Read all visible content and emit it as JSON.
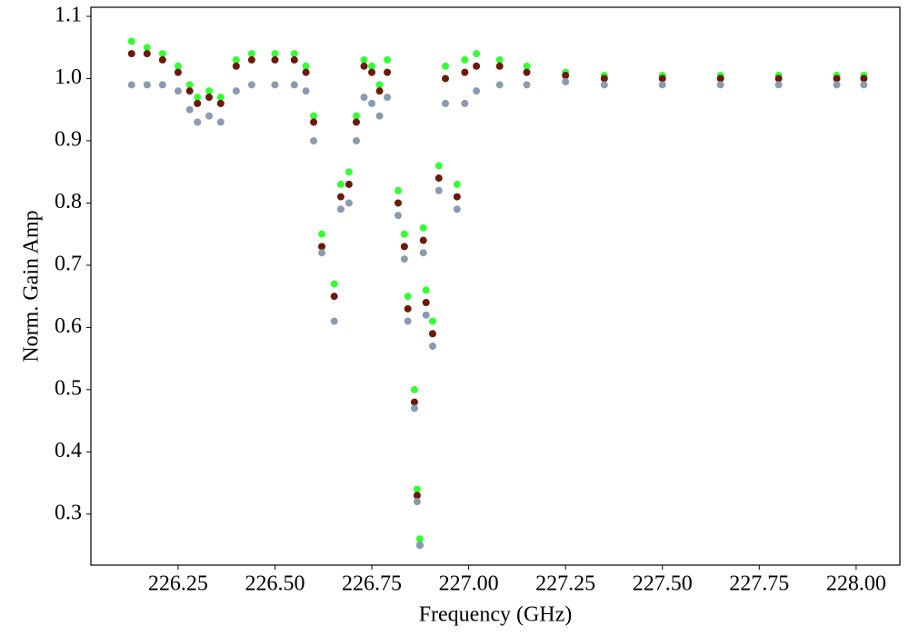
{
  "chart_data": {
    "type": "scatter",
    "x_label": "Frequency (GHz)",
    "y_label": "Norm. Gain Amp",
    "x": [
      226.13,
      226.17,
      226.21,
      226.25,
      226.28,
      226.3,
      226.33,
      226.36,
      226.4,
      226.44,
      226.5,
      226.55,
      226.58,
      226.6,
      226.621,
      226.653,
      226.67,
      226.691,
      226.71,
      226.73,
      226.75,
      226.77,
      226.79,
      226.818,
      226.834,
      226.843,
      226.86,
      226.867,
      226.874,
      226.883,
      226.89,
      226.907,
      226.923,
      226.94,
      226.97,
      226.99,
      227.02,
      227.08,
      227.15,
      227.25,
      227.35,
      227.5,
      227.65,
      227.8,
      227.95,
      228.02
    ],
    "series": [
      {
        "color": "#33ff33",
        "values": [
          1.06,
          1.05,
          1.04,
          1.02,
          0.99,
          0.97,
          0.98,
          0.97,
          1.03,
          1.04,
          1.04,
          1.04,
          1.02,
          0.94,
          0.75,
          0.67,
          0.83,
          0.85,
          0.94,
          1.03,
          1.02,
          0.99,
          1.03,
          0.82,
          0.75,
          0.65,
          0.5,
          0.34,
          0.26,
          0.76,
          0.66,
          0.61,
          0.86,
          1.02,
          0.83,
          1.03,
          1.04,
          1.03,
          1.02,
          1.01,
          1.005,
          1.005,
          1.005,
          1.005,
          1.005,
          1.005
        ]
      },
      {
        "color": "#6b1a0a",
        "values": [
          1.04,
          1.04,
          1.03,
          1.01,
          0.98,
          0.96,
          0.97,
          0.96,
          1.02,
          1.03,
          1.03,
          1.03,
          1.01,
          0.93,
          0.73,
          0.65,
          0.81,
          0.83,
          0.93,
          1.02,
          1.01,
          0.98,
          1.01,
          0.8,
          0.73,
          0.63,
          0.48,
          0.33,
          0.25,
          0.74,
          0.64,
          0.59,
          0.84,
          1.0,
          0.81,
          1.01,
          1.02,
          1.02,
          1.01,
          1.005,
          1.0,
          1.0,
          1.0,
          1.0,
          1.0,
          1.0
        ]
      },
      {
        "color": "#8a9bb0",
        "values": [
          0.99,
          0.99,
          0.99,
          0.98,
          0.95,
          0.93,
          0.94,
          0.93,
          0.98,
          0.99,
          0.99,
          0.99,
          0.98,
          0.9,
          0.72,
          0.61,
          0.79,
          0.8,
          0.9,
          0.97,
          0.96,
          0.94,
          0.97,
          0.78,
          0.71,
          0.61,
          0.47,
          0.32,
          0.25,
          0.72,
          0.62,
          0.57,
          0.82,
          0.96,
          0.79,
          0.96,
          0.98,
          0.99,
          0.99,
          0.995,
          0.99,
          0.99,
          0.99,
          0.99,
          0.99,
          0.99
        ]
      }
    ],
    "xlim": [
      226.025,
      228.113
    ],
    "ylim": [
      0.218,
      1.1146
    ],
    "xticks": [
      226.25,
      {
        "value": 226.5,
        "label": "226.50"
      },
      226.75,
      {
        "value": 227,
        "label": "227.00"
      },
      227.25,
      {
        "value": 227.5,
        "label": "227.50"
      },
      227.75,
      {
        "value": 228,
        "label": "228.00"
      }
    ],
    "yticks": [
      0.3,
      0.4,
      0.5,
      0.6,
      0.7,
      0.8,
      0.9,
      {
        "value": 1,
        "label": "1.0"
      },
      1.1
    ]
  }
}
